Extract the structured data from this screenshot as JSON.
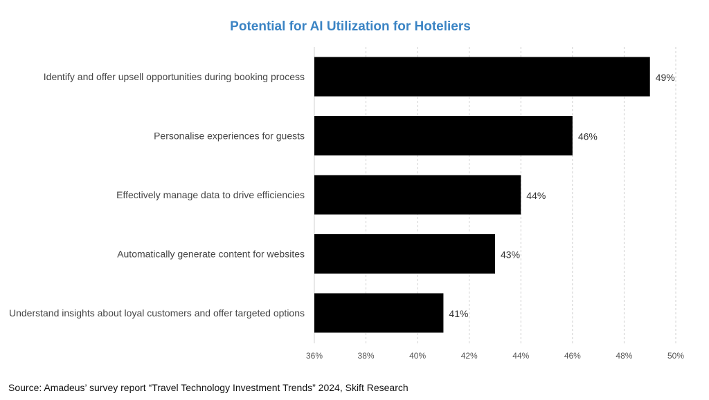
{
  "colors": {
    "title": "#3b84c4",
    "bar": "#000000",
    "grid": "#d0d0d0"
  },
  "source": "Source: Amadeus’ survey report “Travel Technology Investment Trends” 2024, Skift Research",
  "chart_data": {
    "type": "bar",
    "orientation": "horizontal",
    "title": "Potential for AI Utilization for Hoteliers",
    "xlabel": "",
    "ylabel": "",
    "categories": [
      "Identify and offer upsell opportunities during booking process",
      "Personalise experiences for guests",
      "Effectively manage data to drive efficiencies",
      "Automatically generate content for websites",
      "Understand insights about loyal customers and offer targeted options"
    ],
    "values": [
      49,
      46,
      44,
      43,
      41
    ],
    "value_labels": [
      "49%",
      "46%",
      "44%",
      "43%",
      "41%"
    ],
    "xlim": [
      36,
      50
    ],
    "xticks": [
      36,
      38,
      40,
      42,
      44,
      46,
      48,
      50
    ],
    "xtick_labels": [
      "36%",
      "38%",
      "40%",
      "42%",
      "44%",
      "46%",
      "48%",
      "50%"
    ],
    "grid": "vertical dashed",
    "legend": "none"
  }
}
